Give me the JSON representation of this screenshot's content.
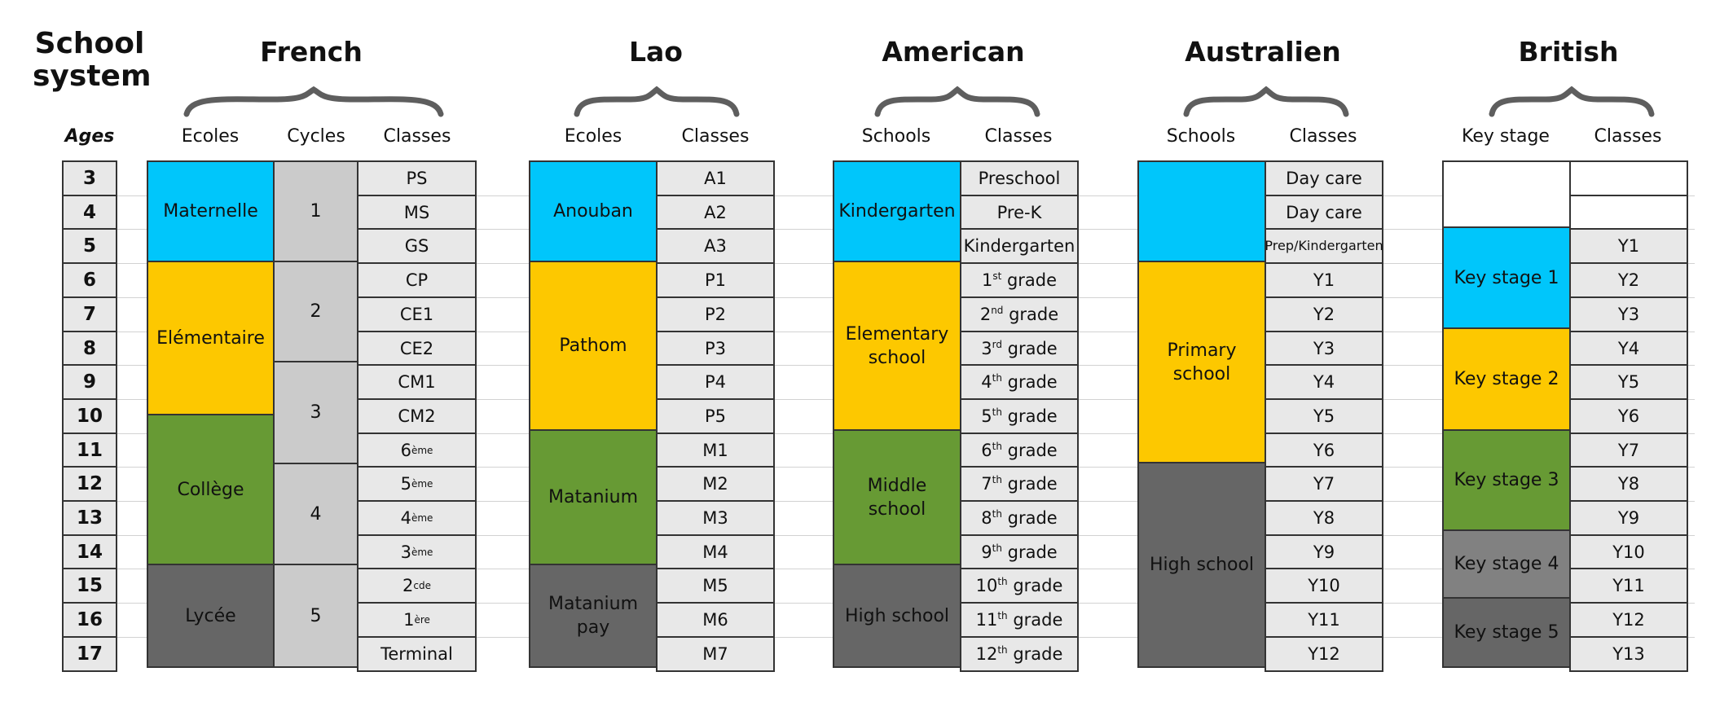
{
  "header": {
    "line1": "School",
    "line2": "system",
    "ages_label": "Ages"
  },
  "ages": [
    "3",
    "4",
    "5",
    "6",
    "7",
    "8",
    "9",
    "10",
    "11",
    "12",
    "13",
    "14",
    "15",
    "16",
    "17"
  ],
  "systems": {
    "french": {
      "title": "French",
      "col_ecoles": "Ecoles",
      "col_cycles": "Cycles",
      "col_classes": "Classes",
      "ecoles": [
        "Maternelle",
        "Elémentaire",
        "Collège",
        "Lycée"
      ],
      "cycles": [
        "1",
        "2",
        "3",
        "4",
        "5"
      ],
      "classes": [
        {
          "text": "PS",
          "sup": ""
        },
        {
          "text": "MS",
          "sup": ""
        },
        {
          "text": "GS",
          "sup": ""
        },
        {
          "text": "CP",
          "sup": ""
        },
        {
          "text": "CE1",
          "sup": ""
        },
        {
          "text": "CE2",
          "sup": ""
        },
        {
          "text": "CM1",
          "sup": ""
        },
        {
          "text": "CM2",
          "sup": ""
        },
        {
          "text": "6",
          "sup": "ème"
        },
        {
          "text": "5",
          "sup": "ème"
        },
        {
          "text": "4",
          "sup": "ème"
        },
        {
          "text": "3",
          "sup": "ème"
        },
        {
          "text": "2",
          "sup": "cde"
        },
        {
          "text": "1",
          "sup": "ère"
        },
        {
          "text": "Terminal",
          "sup": ""
        }
      ]
    },
    "lao": {
      "title": "Lao",
      "col_ecoles": "Ecoles",
      "col_classes": "Classes",
      "ecoles": [
        "Anouban",
        "Pathom",
        "Matanium",
        "Matanium pay"
      ],
      "classes": [
        "A1",
        "A2",
        "A3",
        "P1",
        "P2",
        "P3",
        "P4",
        "P5",
        "M1",
        "M2",
        "M3",
        "M4",
        "M5",
        "M6",
        "M7"
      ]
    },
    "american": {
      "title": "American",
      "col_schools": "Schools",
      "col_classes": "Classes",
      "schools": [
        "Kindergarten",
        "Elementary school",
        "Middle school",
        "High school"
      ],
      "classes": [
        {
          "num": "Preschool",
          "sup": "",
          "suffix": ""
        },
        {
          "num": "Pre-K",
          "sup": "",
          "suffix": ""
        },
        {
          "num": "Kindergarten",
          "sup": "",
          "suffix": ""
        },
        {
          "num": "1",
          "sup": "st",
          "suffix": " grade"
        },
        {
          "num": "2",
          "sup": "nd",
          "suffix": " grade"
        },
        {
          "num": "3",
          "sup": "rd",
          "suffix": " grade"
        },
        {
          "num": "4",
          "sup": "th",
          "suffix": " grade"
        },
        {
          "num": "5",
          "sup": "th",
          "suffix": " grade"
        },
        {
          "num": "6",
          "sup": "th",
          "suffix": " grade"
        },
        {
          "num": "7",
          "sup": "th",
          "suffix": " grade"
        },
        {
          "num": "8",
          "sup": "th",
          "suffix": " grade"
        },
        {
          "num": "9",
          "sup": "th",
          "suffix": " grade"
        },
        {
          "num": "10",
          "sup": "th",
          "suffix": " grade"
        },
        {
          "num": "11",
          "sup": "th",
          "suffix": " grade"
        },
        {
          "num": "12",
          "sup": "th",
          "suffix": " grade"
        }
      ]
    },
    "australian": {
      "title": "Australien",
      "col_schools": "Schools",
      "col_classes": "Classes",
      "schools": [
        "",
        "Primary school",
        "High school"
      ],
      "classes": [
        "Day care",
        "Day care",
        "Prep/Kindergarten",
        "Y1",
        "Y2",
        "Y3",
        "Y4",
        "Y5",
        "Y6",
        "Y7",
        "Y8",
        "Y9",
        "Y10",
        "Y11",
        "Y12"
      ]
    },
    "british": {
      "title": "British",
      "col_stage": "Key stage",
      "col_classes": "Classes",
      "stages": [
        "",
        "Key stage 1",
        "Key stage 2",
        "Key stage 3",
        "Key stage 4",
        "Key stage 5"
      ],
      "classes": [
        "",
        "",
        "Y1",
        "Y2",
        "Y3",
        "Y4",
        "Y5",
        "Y6",
        "Y7",
        "Y8",
        "Y9",
        "Y10",
        "Y11",
        "Y12",
        "Y13"
      ]
    }
  },
  "colors": {
    "maternelle": "#00c6fb",
    "elementaire": "#fdc800",
    "college": "#679a34",
    "lycee": "#666666",
    "key_stage_4": "#818181",
    "cycle": "#cbcbcb",
    "class_cell": "#e8e8e8"
  }
}
